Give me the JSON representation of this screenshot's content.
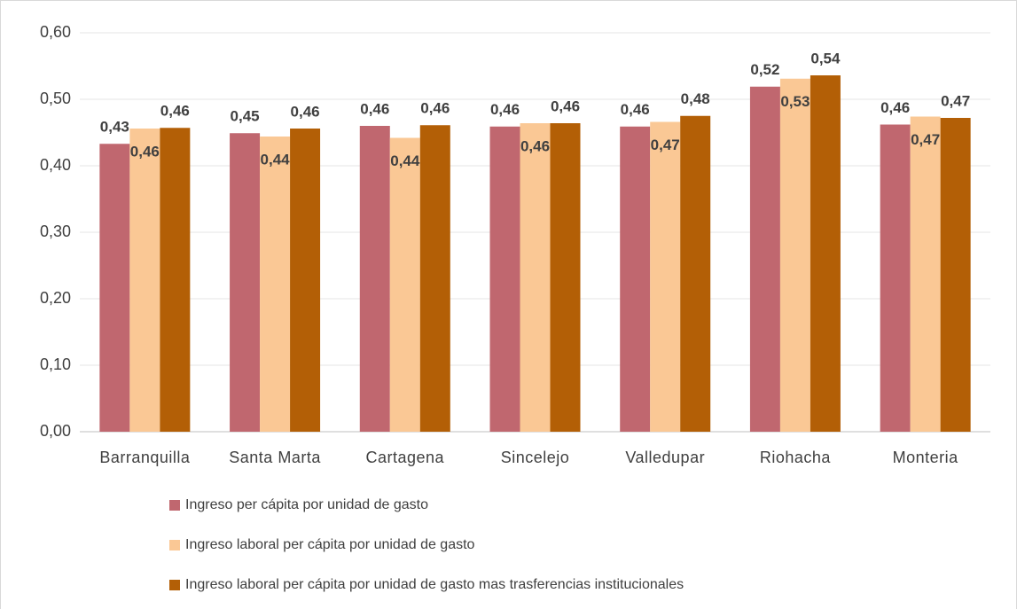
{
  "chart_data": {
    "type": "bar",
    "categories": [
      "Barranquilla",
      "Santa Marta",
      "Cartagena",
      "Sincelejo",
      "Valledupar",
      "Riohacha",
      "Monteria"
    ],
    "series": [
      {
        "name": "Ingreso per cápita por unidad de gasto",
        "color": "#c0676f",
        "values": [
          0.433,
          0.449,
          0.46,
          0.459,
          0.459,
          0.519,
          0.462
        ],
        "value_labels": [
          "0,43",
          "0,45",
          "0,46",
          "0,46",
          "0,46",
          "0,52",
          "0,46"
        ]
      },
      {
        "name": "Ingreso laboral per cápita por unidad de gasto",
        "color": "#fac895",
        "values": [
          0.456,
          0.444,
          0.442,
          0.464,
          0.466,
          0.531,
          0.474
        ],
        "value_labels": [
          "0,46",
          "0,44",
          "0,44",
          "0,46",
          "0,47",
          "0,53",
          "0,47"
        ]
      },
      {
        "name": "Ingreso laboral per cápita por unidad de gasto mas trasferencias institucionales",
        "color": "#b35f06",
        "values": [
          0.457,
          0.456,
          0.461,
          0.464,
          0.475,
          0.536,
          0.472
        ],
        "value_labels": [
          "0,46",
          "0,46",
          "0,46",
          "0,46",
          "0,48",
          "0,54",
          "0,47"
        ]
      }
    ],
    "ylim": [
      0,
      0.6
    ],
    "yticks": [
      {
        "value": 0,
        "label": "0,00"
      },
      {
        "value": 0.1,
        "label": "0,10"
      },
      {
        "value": 0.2,
        "label": "0,20"
      },
      {
        "value": 0.3,
        "label": "0,30"
      },
      {
        "value": 0.4,
        "label": "0,40"
      },
      {
        "value": 0.5,
        "label": "0,50"
      },
      {
        "value": 0.6,
        "label": "0,60"
      }
    ],
    "grid": true
  }
}
